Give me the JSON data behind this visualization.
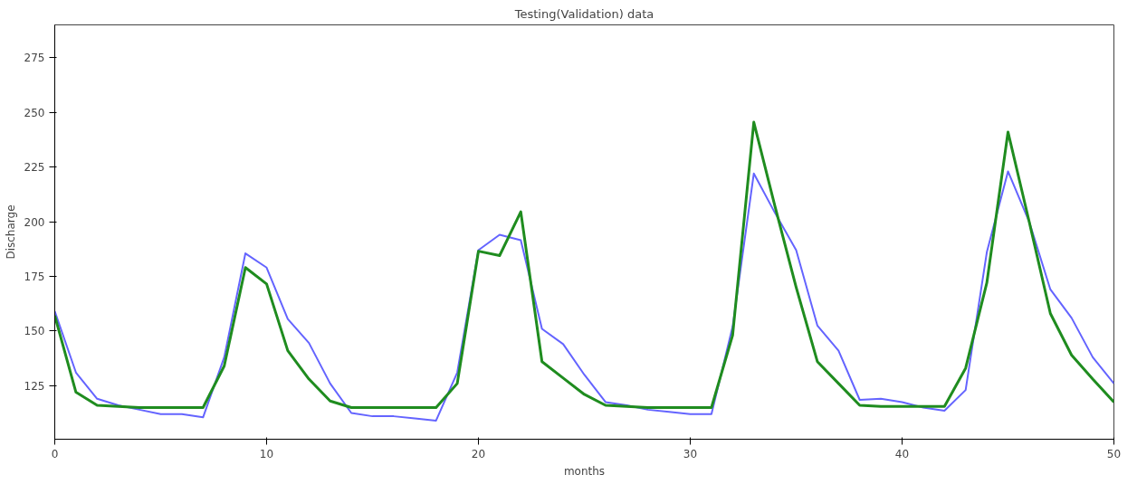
{
  "chart_data": {
    "type": "line",
    "title": "Testing(Validation) data",
    "xlabel": "months",
    "ylabel": "Discharge",
    "x": [
      0,
      1,
      2,
      3,
      4,
      5,
      6,
      7,
      8,
      9,
      10,
      11,
      12,
      13,
      14,
      15,
      16,
      17,
      18,
      19,
      20,
      21,
      22,
      23,
      24,
      25,
      26,
      27,
      28,
      29,
      30,
      31,
      32,
      33,
      34,
      35,
      36,
      37,
      38,
      39,
      40,
      41,
      42,
      43,
      44,
      45,
      46,
      47,
      48,
      49,
      50
    ],
    "series": [
      {
        "color": "#6464ff",
        "values": [
          159,
          131,
          119,
          116,
          114,
          112,
          112,
          110.5,
          138,
          185.5,
          179,
          155.5,
          144.5,
          126,
          112.5,
          111,
          111,
          110,
          109,
          131,
          187,
          194,
          191.5,
          151,
          144,
          130,
          117.5,
          116,
          114,
          113,
          112,
          112,
          152,
          222,
          204,
          187,
          152.5,
          141,
          118.5,
          119,
          117.5,
          115,
          113.5,
          123,
          186,
          223,
          200,
          169,
          156,
          138,
          126
        ]
      },
      {
        "color": "#1f8c1f",
        "values": [
          157,
          122,
          116,
          115.5,
          115,
          115,
          115,
          115,
          134,
          179,
          171.5,
          141,
          128,
          118,
          115,
          115,
          115,
          115,
          115,
          126,
          186.5,
          184.5,
          204.5,
          136,
          128.5,
          121,
          116,
          115.5,
          115,
          115,
          115,
          115,
          148,
          245.5,
          207,
          170,
          136,
          126,
          116,
          115.5,
          115.5,
          115.5,
          115.5,
          133,
          172,
          241,
          200,
          158,
          139,
          128,
          117.5
        ]
      }
    ],
    "xlim": [
      0,
      50
    ],
    "xticks": [
      0,
      10,
      20,
      30,
      40,
      50
    ],
    "ylim": [
      100.5,
      290
    ],
    "yticks": [
      125,
      150,
      175,
      200,
      225,
      250,
      275
    ],
    "grid": false,
    "marker": "none",
    "line_style": "solid"
  }
}
